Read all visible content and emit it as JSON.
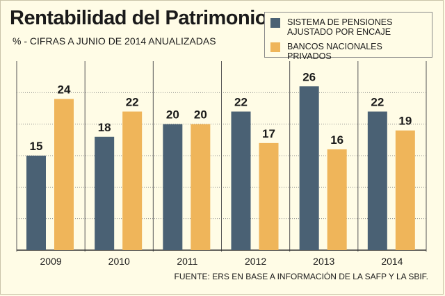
{
  "title": "Rentabilidad del Patrimonio",
  "subtitle": "% - CIFRAS A JUNIO DE 2014 ANUALIZADAS",
  "footer": "FUENTE: ERS EN BASE A INFORMACIÓN DE LA SAFP Y LA SBIF.",
  "colors": {
    "series_pensiones": "#4a6174",
    "series_bancos": "#efb55a",
    "background": "#fffce6",
    "grid": "#8c8c8c"
  },
  "legend": {
    "item1": "SISTEMA DE PENSIONES AJUSTADO POR ENCAJE",
    "item2": "BANCOS NACIONALES PRIVADOS",
    "placement": "top-right"
  },
  "chart_data": {
    "type": "bar",
    "categories": [
      "2009",
      "2010",
      "2011",
      "2012",
      "2013",
      "2014"
    ],
    "series": [
      {
        "name": "SISTEMA DE PENSIONES AJUSTADO POR ENCAJE",
        "values": [
          15,
          18,
          20,
          22,
          26,
          22
        ]
      },
      {
        "name": "BANCOS NACIONALES PRIVADOS",
        "values": [
          24,
          22,
          20,
          17,
          16,
          19
        ]
      }
    ],
    "ylim": [
      0,
      30
    ],
    "grid": true,
    "xlabel": "",
    "ylabel": ""
  }
}
